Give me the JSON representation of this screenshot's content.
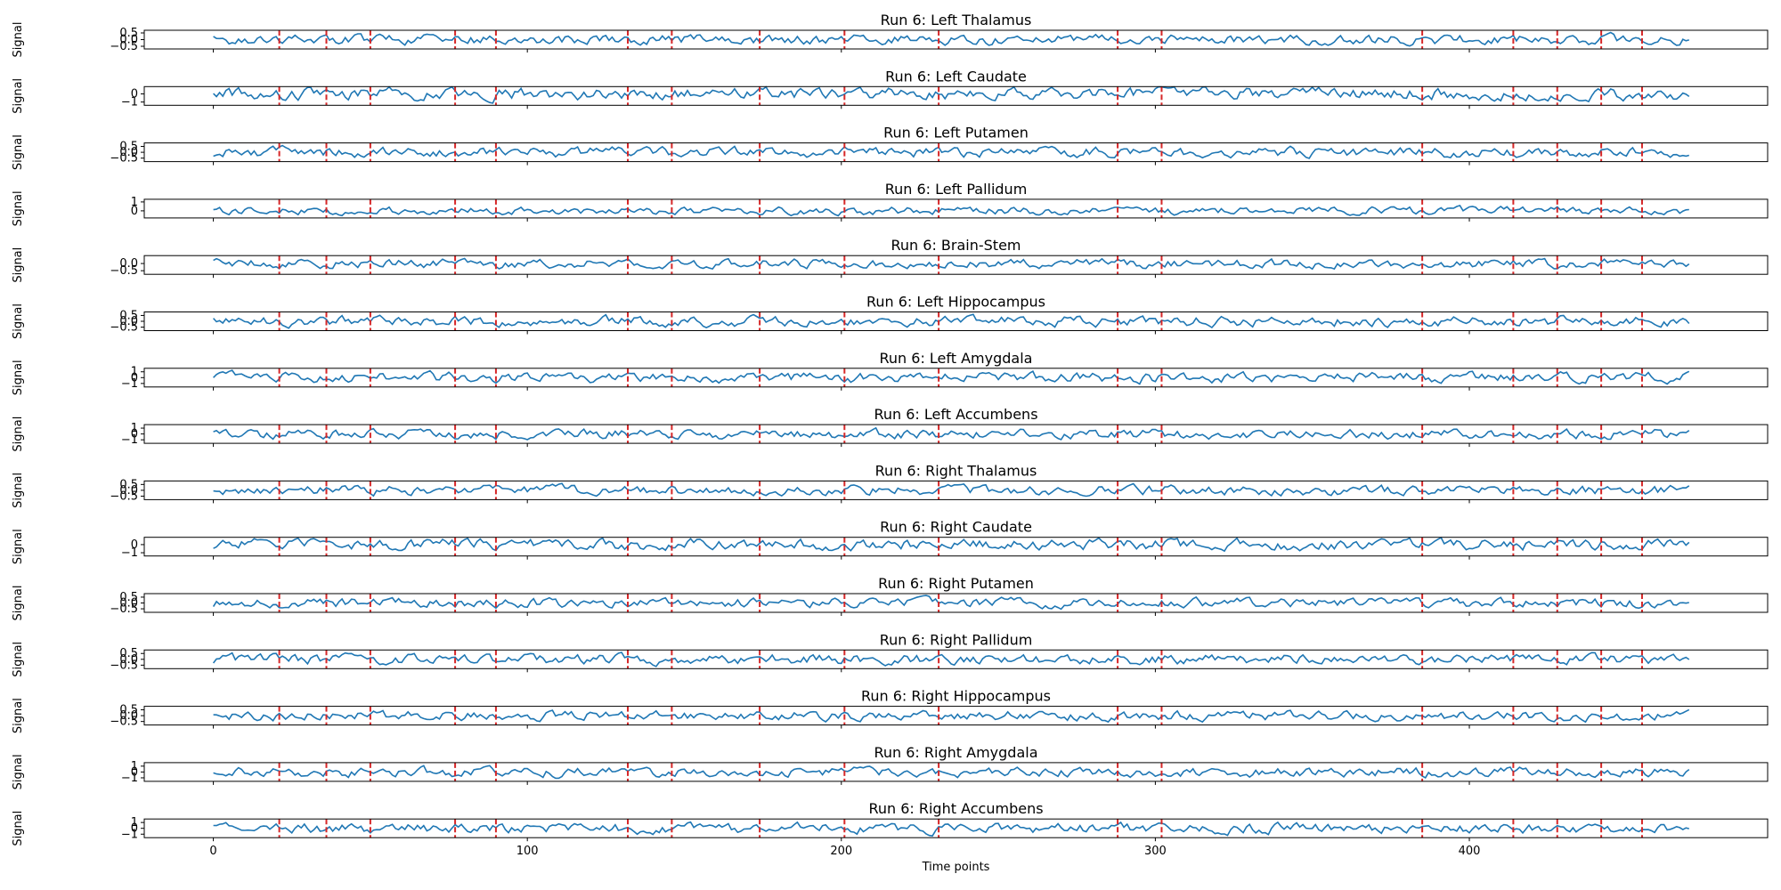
{
  "chart_data": {
    "type": "line",
    "series_color": "#1f77b4",
    "event_color": "#d62728",
    "x_range": [
      -22,
      495
    ],
    "x_max_point": 470,
    "xlabel": "Time points",
    "ylabel": "Signal",
    "x_ticks": [
      {
        "value": 0,
        "label": "0"
      },
      {
        "value": 100,
        "label": "100"
      },
      {
        "value": 200,
        "label": "200"
      },
      {
        "value": 300,
        "label": "300"
      },
      {
        "value": 400,
        "label": "400"
      }
    ],
    "events": [
      21,
      36,
      50,
      77,
      90,
      132,
      146,
      174,
      201,
      231,
      288,
      302,
      385,
      414,
      428,
      442,
      455
    ],
    "panels": [
      {
        "title": "Run 6: Left Thalamus",
        "ylim": [
          -0.7,
          0.7
        ],
        "amp": 0.3,
        "y_ticks": [
          {
            "value": 0.5,
            "label": "0.5"
          },
          {
            "value": 0,
            "label": "0.0"
          },
          {
            "value": -0.5,
            "label": "−0.5"
          }
        ]
      },
      {
        "title": "Run 6: Left Caudate",
        "ylim": [
          -1.4,
          0.9
        ],
        "amp": 0.6,
        "y_ticks": [
          {
            "value": 0,
            "label": "0"
          },
          {
            "value": -1,
            "label": "−1"
          }
        ]
      },
      {
        "title": "Run 6: Left Putamen",
        "ylim": [
          -0.8,
          0.8
        ],
        "amp": 0.35,
        "y_ticks": [
          {
            "value": 0.5,
            "label": "0.5"
          },
          {
            "value": 0,
            "label": "0.0"
          },
          {
            "value": -0.5,
            "label": "−0.5"
          }
        ]
      },
      {
        "title": "Run 6: Left Pallidum",
        "ylim": [
          -0.8,
          1.3
        ],
        "amp": 0.35,
        "y_ticks": [
          {
            "value": 1,
            "label": "1"
          },
          {
            "value": 0,
            "label": "0"
          }
        ]
      },
      {
        "title": "Run 6: Brain-Stem",
        "ylim": [
          -0.75,
          0.55
        ],
        "amp": 0.25,
        "y_ticks": [
          {
            "value": 0,
            "label": "0.0"
          },
          {
            "value": -0.5,
            "label": "−0.5"
          }
        ]
      },
      {
        "title": "Run 6: Left Hippocampus",
        "ylim": [
          -0.8,
          0.8
        ],
        "amp": 0.35,
        "y_ticks": [
          {
            "value": 0.5,
            "label": "0.5"
          },
          {
            "value": 0,
            "label": "0.0"
          },
          {
            "value": -0.5,
            "label": "−0.5"
          }
        ]
      },
      {
        "title": "Run 6: Left Amygdala",
        "ylim": [
          -1.6,
          1.6
        ],
        "amp": 0.7,
        "y_ticks": [
          {
            "value": 1,
            "label": "1"
          },
          {
            "value": 0,
            "label": "0"
          },
          {
            "value": -1,
            "label": "−1"
          }
        ]
      },
      {
        "title": "Run 6: Left Accumbens",
        "ylim": [
          -1.6,
          1.6
        ],
        "amp": 0.65,
        "y_ticks": [
          {
            "value": 1,
            "label": "1"
          },
          {
            "value": 0,
            "label": "0"
          },
          {
            "value": -1,
            "label": "−1"
          }
        ]
      },
      {
        "title": "Run 6: Right Thalamus",
        "ylim": [
          -0.8,
          0.8
        ],
        "amp": 0.33,
        "y_ticks": [
          {
            "value": 0.5,
            "label": "0.5"
          },
          {
            "value": 0,
            "label": "0.0"
          },
          {
            "value": -0.5,
            "label": "−0.5"
          }
        ]
      },
      {
        "title": "Run 6: Right Caudate",
        "ylim": [
          -1.4,
          0.9
        ],
        "amp": 0.55,
        "y_ticks": [
          {
            "value": 0,
            "label": "0"
          },
          {
            "value": -1,
            "label": "−1"
          }
        ]
      },
      {
        "title": "Run 6: Right Putamen",
        "ylim": [
          -0.8,
          0.8
        ],
        "amp": 0.33,
        "y_ticks": [
          {
            "value": 0.5,
            "label": "0.5"
          },
          {
            "value": 0,
            "label": "0.0"
          },
          {
            "value": -0.5,
            "label": "−0.5"
          }
        ]
      },
      {
        "title": "Run 6: Right Pallidum",
        "ylim": [
          -0.8,
          0.8
        ],
        "amp": 0.35,
        "y_ticks": [
          {
            "value": 0.5,
            "label": "0.5"
          },
          {
            "value": 0,
            "label": "0.0"
          },
          {
            "value": -0.5,
            "label": "−0.5"
          }
        ]
      },
      {
        "title": "Run 6: Right Hippocampus",
        "ylim": [
          -0.8,
          0.8
        ],
        "amp": 0.33,
        "y_ticks": [
          {
            "value": 0.5,
            "label": "0.5"
          },
          {
            "value": 0,
            "label": "0.0"
          },
          {
            "value": -0.5,
            "label": "−0.5"
          }
        ]
      },
      {
        "title": "Run 6: Right Amygdala",
        "ylim": [
          -1.6,
          1.6
        ],
        "amp": 0.65,
        "y_ticks": [
          {
            "value": 1,
            "label": "1"
          },
          {
            "value": 0,
            "label": "0"
          },
          {
            "value": -1,
            "label": "−1"
          }
        ]
      },
      {
        "title": "Run 6: Right Accumbens",
        "ylim": [
          -1.6,
          1.6
        ],
        "amp": 0.7,
        "y_ticks": [
          {
            "value": 1,
            "label": "1"
          },
          {
            "value": 0,
            "label": "0"
          },
          {
            "value": -1,
            "label": "−1"
          }
        ]
      }
    ]
  }
}
